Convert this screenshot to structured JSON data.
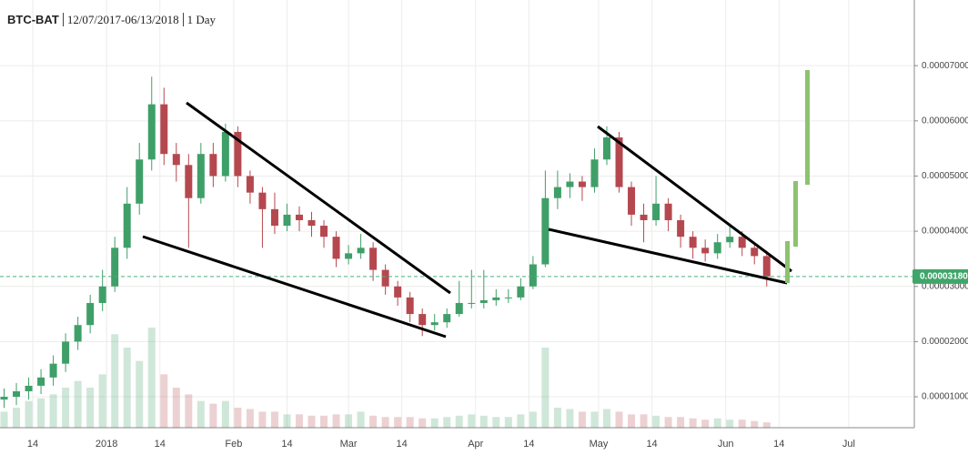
{
  "chart_data": {
    "type": "candlestick",
    "title": "BTC-BAT",
    "date_range": "12/07/2017-06/13/2018",
    "interval": "1 Day",
    "x": [
      "2017-12-07",
      "2017-12-10",
      "2017-12-13",
      "2017-12-16",
      "2017-12-19",
      "2017-12-22",
      "2017-12-25",
      "2017-12-28",
      "2017-12-31",
      "2018-01-03",
      "2018-01-06",
      "2018-01-09",
      "2018-01-12",
      "2018-01-15",
      "2018-01-18",
      "2018-01-21",
      "2018-01-24",
      "2018-01-27",
      "2018-01-30",
      "2018-02-02",
      "2018-02-05",
      "2018-02-08",
      "2018-02-11",
      "2018-02-14",
      "2018-02-17",
      "2018-02-20",
      "2018-02-23",
      "2018-02-26",
      "2018-03-01",
      "2018-03-04",
      "2018-03-07",
      "2018-03-10",
      "2018-03-13",
      "2018-03-16",
      "2018-03-19",
      "2018-03-22",
      "2018-03-25",
      "2018-03-28",
      "2018-03-31",
      "2018-04-03",
      "2018-04-06",
      "2018-04-09",
      "2018-04-12",
      "2018-04-15",
      "2018-04-18",
      "2018-04-21",
      "2018-04-24",
      "2018-04-27",
      "2018-04-30",
      "2018-05-03",
      "2018-05-06",
      "2018-05-09",
      "2018-05-12",
      "2018-05-15",
      "2018-05-18",
      "2018-05-21",
      "2018-05-24",
      "2018-05-27",
      "2018-05-30",
      "2018-06-02",
      "2018-06-05",
      "2018-06-08",
      "2018-06-11"
    ],
    "open": [
      9.5e-06,
      1e-05,
      1.1e-05,
      1.2e-05,
      1.35e-05,
      1.6e-05,
      2e-05,
      2.3e-05,
      2.7e-05,
      3e-05,
      3.7e-05,
      4.5e-05,
      5.3e-05,
      6.3e-05,
      5.4e-05,
      5.2e-05,
      4.6e-05,
      5.4e-05,
      5e-05,
      5.8e-05,
      5e-05,
      4.7e-05,
      4.4e-05,
      4.1e-05,
      4.3e-05,
      4.2e-05,
      4.1e-05,
      3.9e-05,
      3.5e-05,
      3.6e-05,
      3.7e-05,
      3.3e-05,
      3e-05,
      2.8e-05,
      2.5e-05,
      2.3e-05,
      2.35e-05,
      2.5e-05,
      2.7e-05,
      2.7e-05,
      2.75e-05,
      2.8e-05,
      2.8e-05,
      3e-05,
      3.4e-05,
      4.6e-05,
      4.8e-05,
      4.9e-05,
      4.8e-05,
      5.3e-05,
      5.7e-05,
      4.8e-05,
      4.3e-05,
      4.2e-05,
      4.5e-05,
      4.2e-05,
      3.9e-05,
      3.7e-05,
      3.6e-05,
      3.8e-05,
      3.9e-05,
      3.7e-05,
      3.55e-05
    ],
    "high": [
      1.15e-05,
      1.25e-05,
      1.35e-05,
      1.5e-05,
      1.75e-05,
      2.15e-05,
      2.45e-05,
      2.85e-05,
      3.3e-05,
      3.9e-05,
      4.8e-05,
      5.6e-05,
      6.8e-05,
      6.6e-05,
      5.6e-05,
      5.4e-05,
      5.6e-05,
      5.6e-05,
      5.95e-05,
      5.9e-05,
      5.1e-05,
      4.8e-05,
      4.7e-05,
      4.5e-05,
      4.45e-05,
      4.35e-05,
      4.2e-05,
      4e-05,
      3.75e-05,
      3.95e-05,
      3.8e-05,
      3.4e-05,
      3.1e-05,
      2.9e-05,
      2.6e-05,
      2.5e-05,
      2.6e-05,
      3.1e-05,
      3.3e-05,
      3.3e-05,
      2.95e-05,
      2.95e-05,
      3.15e-05,
      3.55e-05,
      5.1e-05,
      5.1e-05,
      5.05e-05,
      5e-05,
      5.5e-05,
      5.9e-05,
      5.8e-05,
      4.9e-05,
      4.5e-05,
      5e-05,
      4.6e-05,
      4.3e-05,
      4e-05,
      3.85e-05,
      3.95e-05,
      4.1e-05,
      4e-05,
      3.8e-05,
      3.6e-05
    ],
    "low": [
      8e-06,
      8.5e-06,
      9.5e-06,
      1.05e-05,
      1.2e-05,
      1.45e-05,
      1.85e-05,
      2.15e-05,
      2.55e-05,
      2.9e-05,
      3.5e-05,
      4.3e-05,
      5.1e-05,
      5.2e-05,
      4.9e-05,
      3.7e-05,
      4.5e-05,
      4.8e-05,
      4.9e-05,
      4.8e-05,
      4.5e-05,
      3.7e-05,
      3.95e-05,
      4e-05,
      4e-05,
      3.9e-05,
      3.7e-05,
      3.35e-05,
      3.4e-05,
      3.5e-05,
      3.1e-05,
      2.85e-05,
      2.65e-05,
      2.35e-05,
      2.1e-05,
      2.2e-05,
      2.25e-05,
      2.45e-05,
      2.6e-05,
      2.6e-05,
      2.65e-05,
      2.7e-05,
      2.75e-05,
      2.95e-05,
      3.35e-05,
      4.4e-05,
      4.6e-05,
      4.55e-05,
      4.7e-05,
      5.2e-05,
      4.7e-05,
      4.1e-05,
      3.8e-05,
      4.1e-05,
      4e-05,
      3.7e-05,
      3.5e-05,
      3.45e-05,
      3.5e-05,
      3.7e-05,
      3.55e-05,
      3.4e-05,
      3e-05
    ],
    "close": [
      1e-05,
      1.1e-05,
      1.2e-05,
      1.35e-05,
      1.6e-05,
      2e-05,
      2.3e-05,
      2.7e-05,
      3e-05,
      3.7e-05,
      4.5e-05,
      5.3e-05,
      6.3e-05,
      5.4e-05,
      5.2e-05,
      4.6e-05,
      5.4e-05,
      5e-05,
      5.8e-05,
      5e-05,
      4.7e-05,
      4.4e-05,
      4.1e-05,
      4.3e-05,
      4.2e-05,
      4.1e-05,
      3.9e-05,
      3.5e-05,
      3.6e-05,
      3.7e-05,
      3.3e-05,
      3e-05,
      2.8e-05,
      2.5e-05,
      2.3e-05,
      2.35e-05,
      2.5e-05,
      2.7e-05,
      2.7e-05,
      2.75e-05,
      2.8e-05,
      2.8e-05,
      3e-05,
      3.4e-05,
      4.6e-05,
      4.8e-05,
      4.9e-05,
      4.8e-05,
      5.3e-05,
      5.7e-05,
      4.8e-05,
      4.3e-05,
      4.2e-05,
      4.5e-05,
      4.2e-05,
      3.9e-05,
      3.7e-05,
      3.6e-05,
      3.8e-05,
      3.9e-05,
      3.7e-05,
      3.55e-05,
      3.18e-05
    ],
    "volume": [
      12,
      15,
      20,
      22,
      25,
      30,
      35,
      30,
      40,
      70,
      60,
      50,
      75,
      40,
      30,
      25,
      20,
      18,
      20,
      15,
      14,
      12,
      12,
      10,
      10,
      9,
      9,
      10,
      10,
      12,
      9,
      8,
      8,
      8,
      7,
      7,
      8,
      9,
      10,
      9,
      8,
      8,
      10,
      12,
      60,
      15,
      14,
      12,
      12,
      14,
      12,
      10,
      10,
      9,
      8,
      8,
      7,
      6,
      7,
      6,
      6,
      5,
      4
    ],
    "up_color": "#3f9f68",
    "down_color": "#b5484f",
    "xlim": [
      "2017-12-06",
      "2018-07-17"
    ],
    "xticks": [
      {
        "value": "2017-12-14",
        "label": "14"
      },
      {
        "value": "2018-01-01",
        "label": "2018"
      },
      {
        "value": "2018-01-14",
        "label": "14"
      },
      {
        "value": "2018-02-01",
        "label": "Feb"
      },
      {
        "value": "2018-02-14",
        "label": "14"
      },
      {
        "value": "2018-03-01",
        "label": "Mar"
      },
      {
        "value": "2018-03-14",
        "label": "14"
      },
      {
        "value": "2018-04-01",
        "label": "Apr"
      },
      {
        "value": "2018-04-14",
        "label": "14"
      },
      {
        "value": "2018-05-01",
        "label": "May"
      },
      {
        "value": "2018-05-14",
        "label": "14"
      },
      {
        "value": "2018-06-01",
        "label": "Jun"
      },
      {
        "value": "2018-06-14",
        "label": "14"
      },
      {
        "value": "2018-07-01",
        "label": "Jul"
      }
    ],
    "ylim": [
      4.4e-06,
      8.19e-05
    ],
    "yticks": [
      {
        "value": 1e-05,
        "label": "0.00001000"
      },
      {
        "value": 2e-05,
        "label": "0.00002000"
      },
      {
        "value": 3e-05,
        "label": "0.00003000"
      },
      {
        "value": 4e-05,
        "label": "0.00004000"
      },
      {
        "value": 5e-05,
        "label": "0.00005000"
      },
      {
        "value": 6e-05,
        "label": "0.00006000"
      },
      {
        "value": 7e-05,
        "label": "0.00007000"
      }
    ],
    "last_price": {
      "value": 3.18e-05,
      "label": "0.00003180"
    },
    "grid": true
  }
}
